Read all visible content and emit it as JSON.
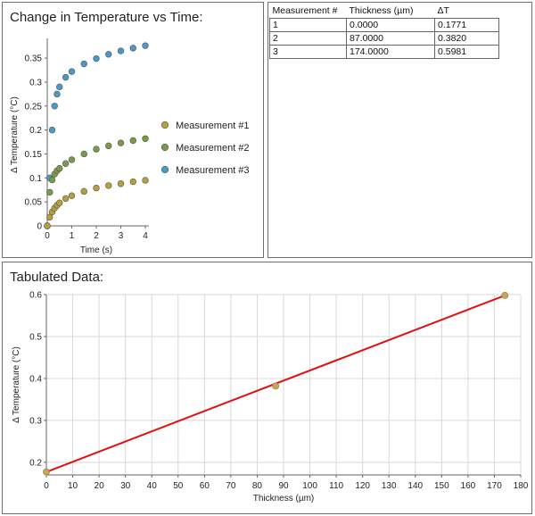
{
  "chart_data": [
    {
      "type": "scatter",
      "title": "Change in Temperature vs Time:",
      "xlabel": "Time (s)",
      "ylabel": "Δ Temperature (°C)",
      "xlim": [
        0,
        4
      ],
      "ylim": [
        0,
        0.38
      ],
      "xticks": [
        "0",
        "1",
        "2",
        "3",
        "4"
      ],
      "yticks": [
        "0",
        "0.05",
        "0.1",
        "0.15",
        "0.2",
        "0.25",
        "0.3",
        "0.35"
      ],
      "legend_position": "right",
      "series": [
        {
          "name": "Measurement #1",
          "color": "#b5a03e",
          "x": [
            0,
            0.1,
            0.2,
            0.3,
            0.4,
            0.5,
            0.75,
            1,
            1.5,
            2,
            2.5,
            3,
            3.5,
            4
          ],
          "y": [
            0,
            0.018,
            0.029,
            0.037,
            0.043,
            0.048,
            0.057,
            0.063,
            0.072,
            0.079,
            0.084,
            0.088,
            0.092,
            0.095
          ]
        },
        {
          "name": "Measurement #2",
          "color": "#7a9a4a",
          "x": [
            0,
            0.1,
            0.2,
            0.3,
            0.4,
            0.5,
            0.75,
            1,
            1.5,
            2,
            2.5,
            3,
            3.5,
            4
          ],
          "y": [
            0,
            0.07,
            0.096,
            0.108,
            0.115,
            0.12,
            0.13,
            0.138,
            0.15,
            0.16,
            0.167,
            0.173,
            0.178,
            0.182
          ]
        },
        {
          "name": "Measurement #3",
          "color": "#4a9ac8",
          "x": [
            0,
            0.1,
            0.2,
            0.3,
            0.4,
            0.5,
            0.75,
            1,
            1.5,
            2,
            2.5,
            3,
            3.5,
            4
          ],
          "y": [
            0,
            0.1,
            0.2,
            0.25,
            0.275,
            0.29,
            0.31,
            0.322,
            0.338,
            0.349,
            0.358,
            0.365,
            0.371,
            0.376
          ]
        }
      ]
    },
    {
      "type": "scatter",
      "title": "Tabulated Data:",
      "xlabel": "Thickness (µm)",
      "ylabel": "Δ Temperature (°C)",
      "xlim": [
        0,
        180
      ],
      "ylim": [
        0.17,
        0.6
      ],
      "xticks": [
        "0",
        "10",
        "20",
        "30",
        "40",
        "50",
        "60",
        "70",
        "80",
        "90",
        "100",
        "110",
        "120",
        "130",
        "140",
        "150",
        "160",
        "170",
        "180"
      ],
      "yticks": [
        "0.2",
        "0.3",
        "0.4",
        "0.5",
        "0.6"
      ],
      "grid": true,
      "series": [
        {
          "x": [
            0,
            87,
            174
          ],
          "y": [
            0.1771,
            0.382,
            0.5981
          ],
          "color": "#c8a84a"
        }
      ],
      "fit_line": {
        "x": [
          0,
          174
        ],
        "y": [
          0.1771,
          0.5981
        ],
        "color": "#e01010"
      }
    }
  ],
  "table": {
    "headers": [
      "Measurement #",
      "Thickness (µm)",
      "ΔT"
    ],
    "rows": [
      [
        "1",
        "0.0000",
        "0.1771"
      ],
      [
        "2",
        "87.0000",
        "0.3820"
      ],
      [
        "3",
        "174.0000",
        "0.5981"
      ]
    ]
  }
}
